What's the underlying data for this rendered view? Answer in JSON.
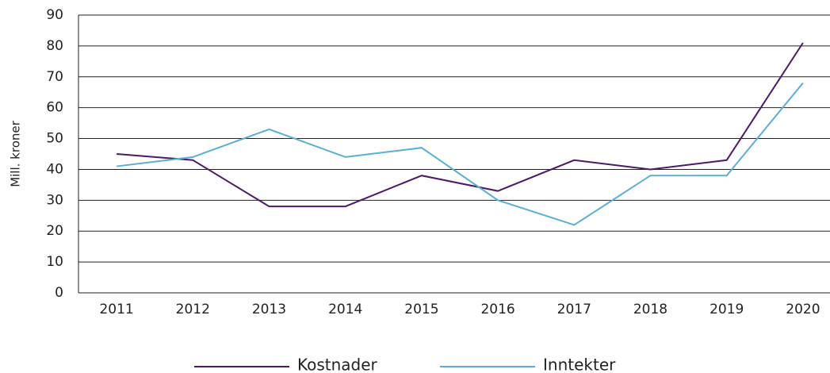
{
  "chart_data": {
    "type": "line",
    "y_label": "Mill. kroner",
    "categories": [
      "2011",
      "2012",
      "2013",
      "2014",
      "2015",
      "2016",
      "2017",
      "2018",
      "2019",
      "2020"
    ],
    "series": [
      {
        "name": "Kostnader",
        "color": "#4b1a6b",
        "values": [
          45,
          43,
          28,
          28,
          38,
          33,
          43,
          40,
          43,
          81
        ]
      },
      {
        "name": "Inntekter",
        "color": "#5aafd6",
        "values": [
          41,
          44,
          53,
          44,
          47,
          30,
          22,
          38,
          38,
          68
        ]
      }
    ],
    "ylim": [
      0,
      90
    ],
    "yticks": [
      0,
      10,
      20,
      30,
      40,
      50,
      60,
      70,
      80,
      90
    ],
    "grid": true,
    "legend": "bottom"
  }
}
